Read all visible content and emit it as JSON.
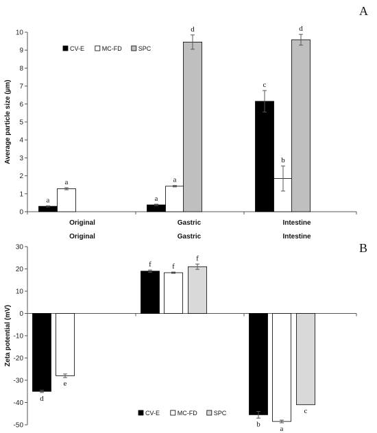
{
  "chart_data": [
    {
      "type": "bar",
      "panel_label": "A",
      "ylabel": "Average particle size (µm)",
      "ylim": [
        0,
        10
      ],
      "yticks": [
        0,
        1,
        2,
        3,
        4,
        5,
        6,
        7,
        8,
        9,
        10
      ],
      "categories": [
        "Original",
        "Gastric",
        "Intestine"
      ],
      "series": [
        {
          "name": "CV-E",
          "color": "#000000",
          "values": [
            0.3,
            0.38,
            6.15
          ],
          "errors": [
            0.03,
            0.04,
            0.6
          ],
          "letters": [
            "a",
            "a",
            "c"
          ]
        },
        {
          "name": "MC-FD",
          "color": "#ffffff",
          "values": [
            1.28,
            1.42,
            1.85
          ],
          "errors": [
            0.06,
            0.04,
            0.7
          ],
          "letters": [
            "a",
            "a",
            "b"
          ]
        },
        {
          "name": "SPC",
          "color": "#bfbfbf",
          "values": [
            null,
            9.45,
            9.58
          ],
          "errors": [
            null,
            0.4,
            0.3
          ],
          "letters": [
            "",
            "d",
            "d"
          ]
        }
      ],
      "legend": "top-left"
    },
    {
      "type": "bar",
      "panel_label": "B",
      "ylabel": "Zeta potential (mV)",
      "ylim": [
        -50,
        30
      ],
      "yticks": [
        -50,
        -40,
        -30,
        -20,
        -10,
        0,
        10,
        20,
        30
      ],
      "categories": [
        "Original",
        "Gastric",
        "Intestine"
      ],
      "series": [
        {
          "name": "CV-E",
          "color": "#000000",
          "values": [
            -35,
            19,
            -45.5
          ],
          "errors": [
            0.5,
            0.5,
            1.5
          ],
          "letters": [
            "d",
            "f",
            "b"
          ]
        },
        {
          "name": "MC-FD",
          "color": "#ffffff",
          "values": [
            -28,
            18.3,
            -48.5
          ],
          "errors": [
            0.8,
            0.3,
            0.6
          ],
          "letters": [
            "e",
            "f",
            "a"
          ]
        },
        {
          "name": "SPC",
          "color": "#d9d9d9",
          "values": [
            null,
            21,
            -41
          ],
          "errors": [
            null,
            1.2,
            0
          ],
          "letters": [
            "",
            "f",
            "c"
          ]
        }
      ],
      "legend": "bottom-center"
    }
  ]
}
